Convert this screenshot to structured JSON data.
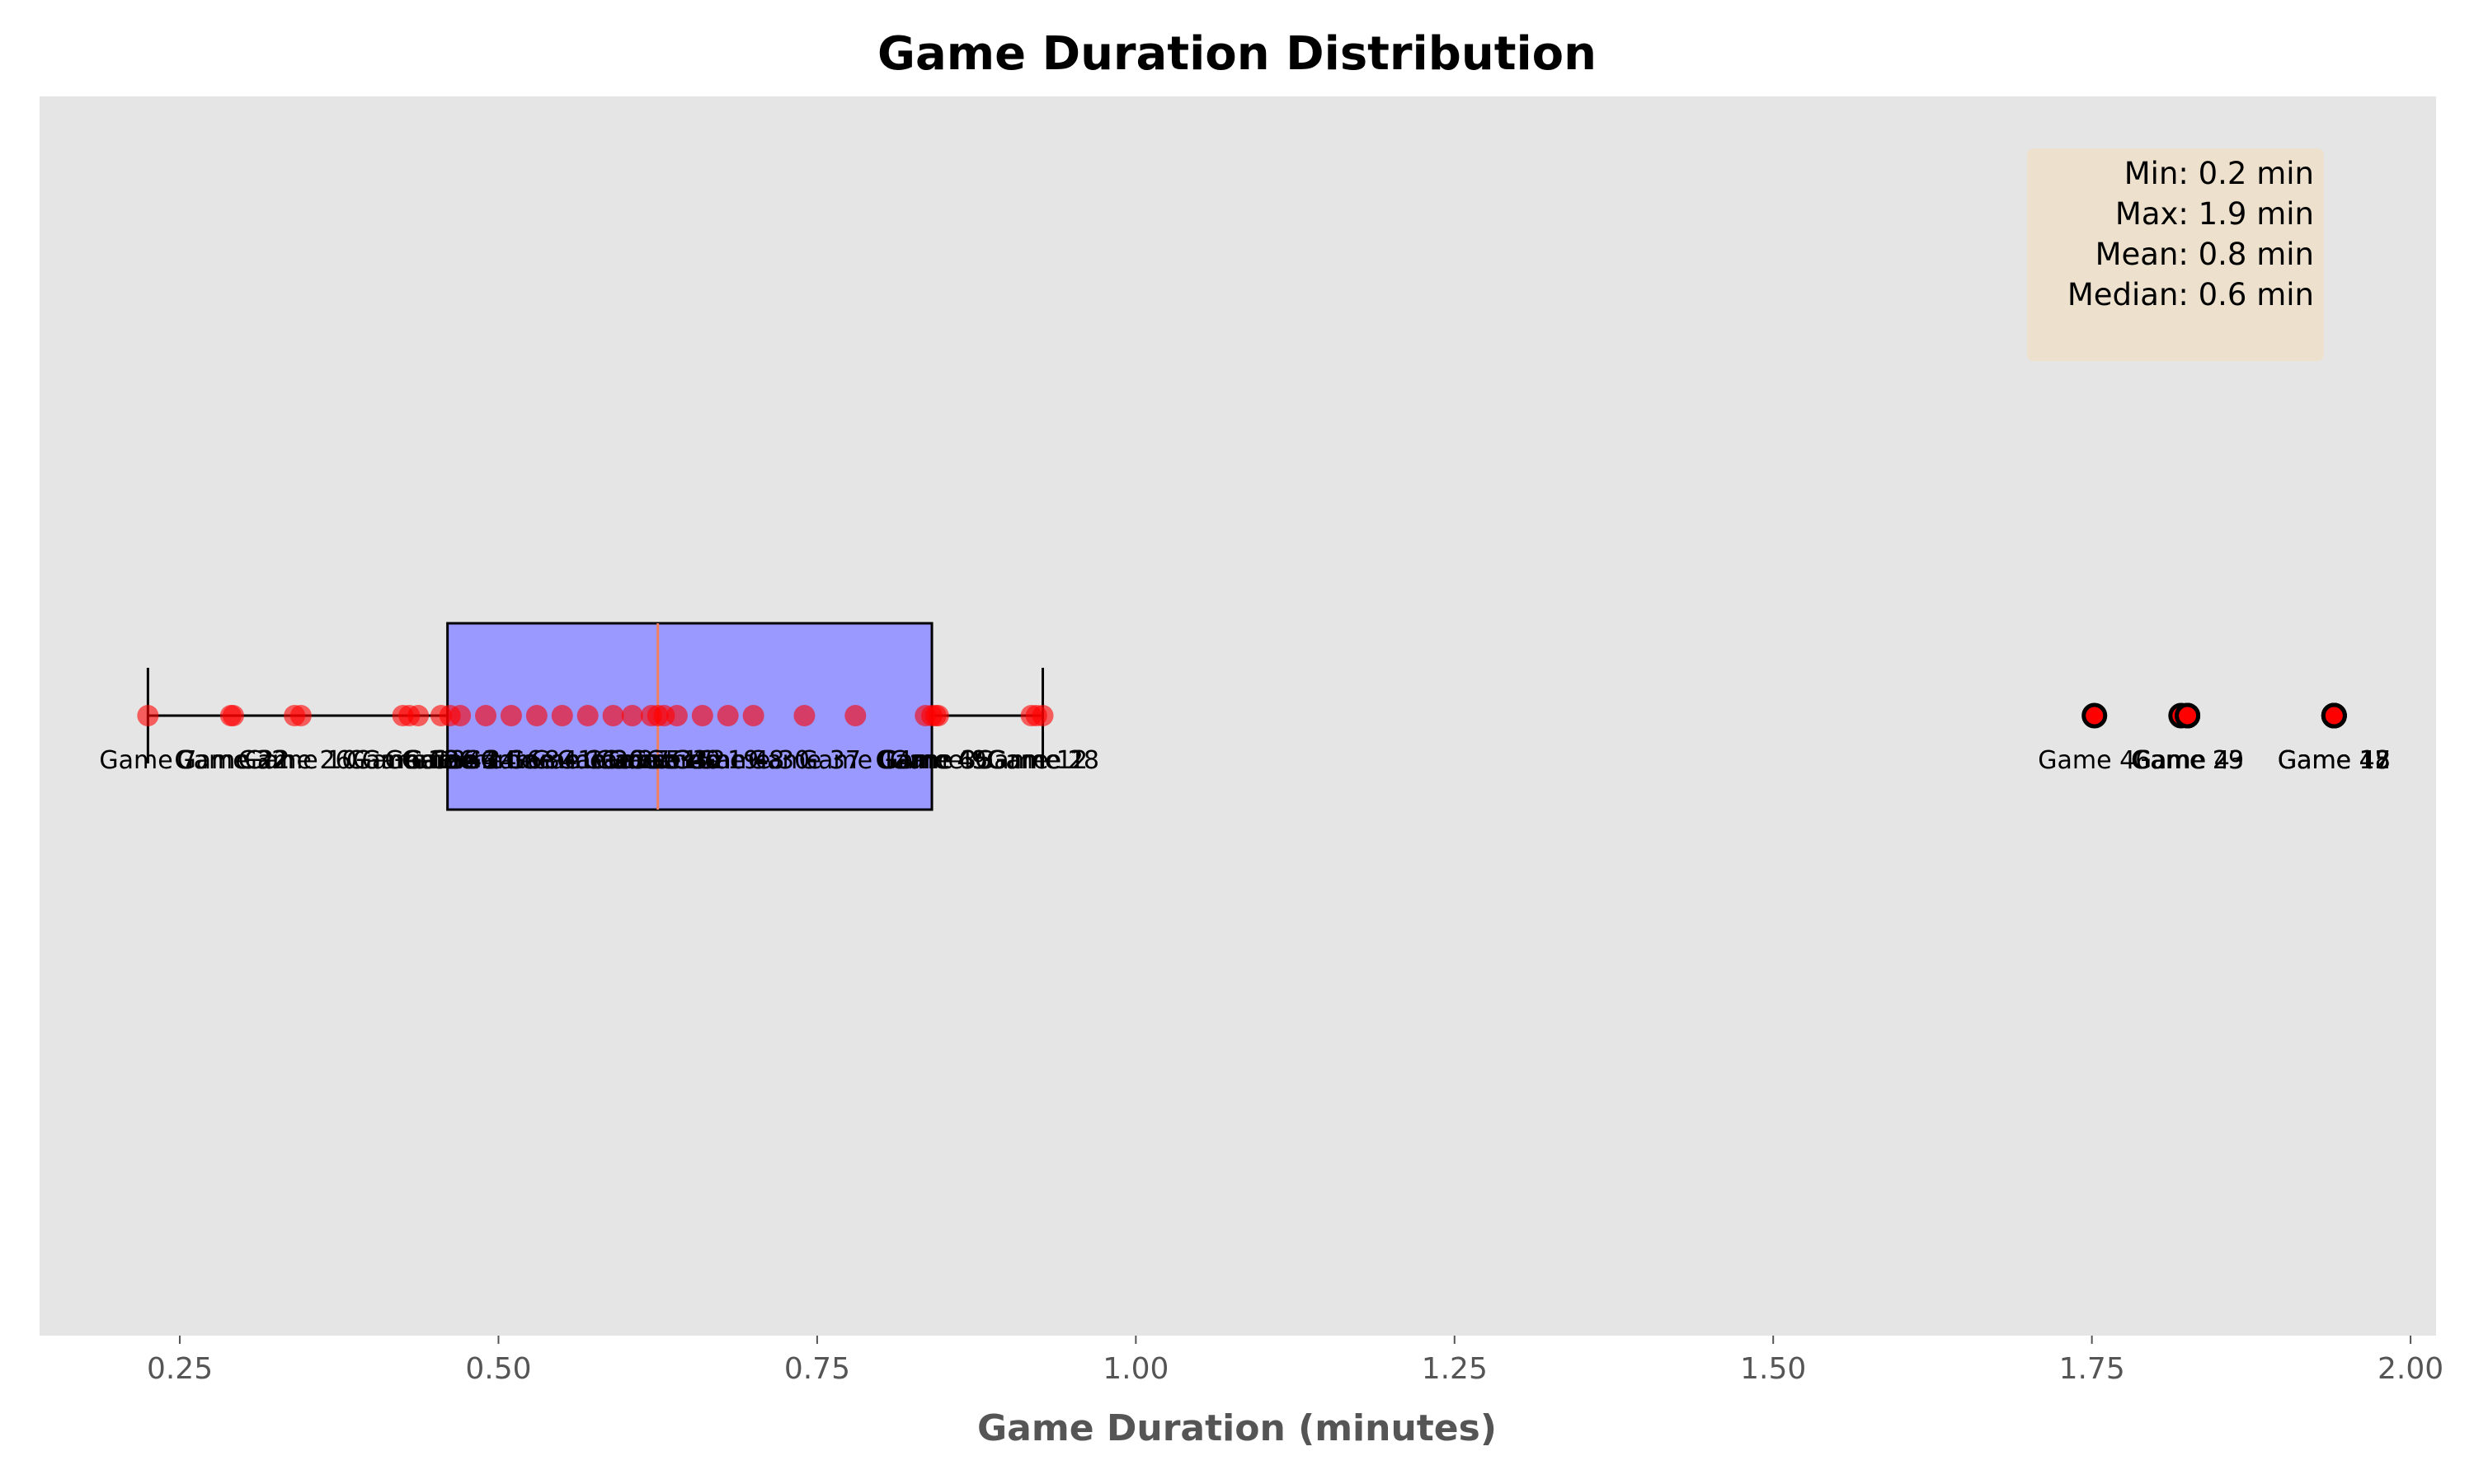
{
  "chart_data": {
    "type": "box",
    "title": "Game Duration Distribution",
    "xlabel": "Game Duration (minutes)",
    "ylabel": "",
    "xlim": [
      0.14,
      2.02
    ],
    "xticks": [
      0.25,
      0.5,
      0.75,
      1.0,
      1.25,
      1.5,
      1.75,
      2.0
    ],
    "xtick_labels": [
      "0.25",
      "0.50",
      "0.75",
      "1.00",
      "1.25",
      "1.50",
      "1.75",
      "2.00"
    ],
    "grid": false,
    "background_color": "#e5e5e5",
    "box": {
      "whisker_low": 0.225,
      "q1": 0.46,
      "median": 0.625,
      "q3": 0.84,
      "whisker_high": 0.927,
      "fill_color": "#9999ff",
      "median_color": "#f08060"
    },
    "points": [
      {
        "label": "Game 7",
        "value": 0.225
      },
      {
        "label": "Game 32",
        "value": 0.29
      },
      {
        "label": "Game 22",
        "value": 0.292
      },
      {
        "label": "Game 26",
        "value": 0.34
      },
      {
        "label": "Game 10",
        "value": 0.345
      },
      {
        "label": "Game 18",
        "value": 0.425
      },
      {
        "label": "Game 13",
        "value": 0.43
      },
      {
        "label": "Game 36",
        "value": 0.437
      },
      {
        "label": "Game 44",
        "value": 0.455
      },
      {
        "label": "Game 3",
        "value": 0.462
      },
      {
        "label": "Game 24",
        "value": 0.47
      },
      {
        "label": "Game 16",
        "value": 0.49
      },
      {
        "label": "Game 8",
        "value": 0.51
      },
      {
        "label": "Game 41",
        "value": 0.53
      },
      {
        "label": "Game 11",
        "value": 0.55
      },
      {
        "label": "Game 20",
        "value": 0.57
      },
      {
        "label": "Game 27",
        "value": 0.59
      },
      {
        "label": "Game 5",
        "value": 0.605
      },
      {
        "label": "Game 33",
        "value": 0.62
      },
      {
        "label": "Game 15",
        "value": 0.625
      },
      {
        "label": "Game 40",
        "value": 0.63
      },
      {
        "label": "Game 2",
        "value": 0.64
      },
      {
        "label": "Game 19",
        "value": 0.66
      },
      {
        "label": "Game 48",
        "value": 0.68
      },
      {
        "label": "Game 30",
        "value": 0.7
      },
      {
        "label": "Game 37",
        "value": 0.74
      },
      {
        "label": "Game 14",
        "value": 0.78
      },
      {
        "label": "Game 6",
        "value": 0.835
      },
      {
        "label": "Game 45",
        "value": 0.84
      },
      {
        "label": "Game 35",
        "value": 0.843
      },
      {
        "label": "Game 9",
        "value": 0.845
      },
      {
        "label": "Game 12",
        "value": 0.918
      },
      {
        "label": "Game 1",
        "value": 0.922
      },
      {
        "label": "Game 28",
        "value": 0.927
      },
      {
        "label": "Game 46",
        "value": 1.752
      },
      {
        "label": "Game 4",
        "value": 1.82
      },
      {
        "label": "Game 23",
        "value": 1.825
      },
      {
        "label": "Game 29",
        "value": 1.825
      },
      {
        "label": "Game 17",
        "value": 1.94
      },
      {
        "label": "Game 42",
        "value": 1.94
      },
      {
        "label": "Game 15",
        "value": 1.94
      },
      {
        "label": "Game 48",
        "value": 1.94
      }
    ],
    "point_color": "#ff0000"
  },
  "stats": {
    "min": "Min: 0.2 min",
    "max": "Max: 1.9 min",
    "mean": "Mean: 0.8 min",
    "median": "Median: 0.6 min"
  }
}
